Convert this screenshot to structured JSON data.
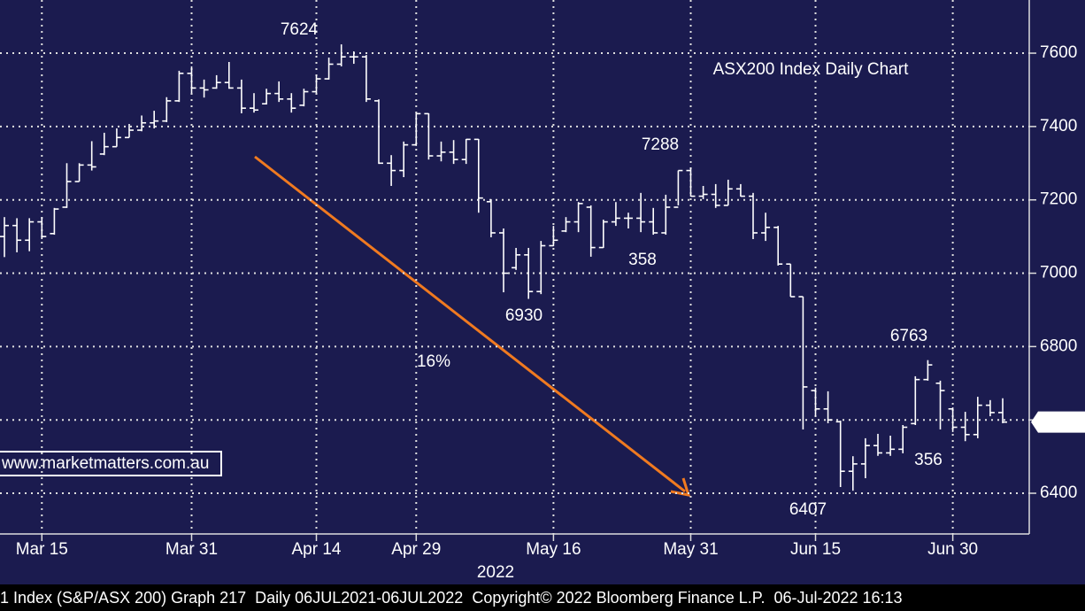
{
  "chart_data": {
    "type": "ohlc",
    "title": "ASX200 Index Daily Chart",
    "x": [
      "2022-03-10",
      "2022-03-11",
      "2022-03-14",
      "2022-03-15",
      "2022-03-16",
      "2022-03-17",
      "2022-03-18",
      "2022-03-21",
      "2022-03-22",
      "2022-03-23",
      "2022-03-24",
      "2022-03-25",
      "2022-03-28",
      "2022-03-29",
      "2022-03-30",
      "2022-03-31",
      "2022-04-01",
      "2022-04-04",
      "2022-04-05",
      "2022-04-06",
      "2022-04-07",
      "2022-04-08",
      "2022-04-11",
      "2022-04-12",
      "2022-04-13",
      "2022-04-14",
      "2022-04-19",
      "2022-04-20",
      "2022-04-21",
      "2022-04-22",
      "2022-04-26",
      "2022-04-27",
      "2022-04-28",
      "2022-04-29",
      "2022-05-02",
      "2022-05-03",
      "2022-05-04",
      "2022-05-05",
      "2022-05-06",
      "2022-05-09",
      "2022-05-10",
      "2022-05-11",
      "2022-05-12",
      "2022-05-13",
      "2022-05-16",
      "2022-05-17",
      "2022-05-18",
      "2022-05-19",
      "2022-05-20",
      "2022-05-23",
      "2022-05-24",
      "2022-05-25",
      "2022-05-26",
      "2022-05-27",
      "2022-05-30",
      "2022-05-31",
      "2022-06-01",
      "2022-06-02",
      "2022-06-03",
      "2022-06-06",
      "2022-06-07",
      "2022-06-08",
      "2022-06-09",
      "2022-06-10",
      "2022-06-14",
      "2022-06-15",
      "2022-06-16",
      "2022-06-17",
      "2022-06-20",
      "2022-06-21",
      "2022-06-22",
      "2022-06-23",
      "2022-06-24",
      "2022-06-27",
      "2022-06-28",
      "2022-06-29",
      "2022-06-30",
      "2022-07-01",
      "2022-07-04",
      "2022-07-05",
      "2022-07-06"
    ],
    "open": [
      7100,
      7130,
      7090,
      7140,
      7108,
      7180,
      7250,
      7295,
      7325,
      7345,
      7370,
      7390,
      7410,
      7415,
      7470,
      7545,
      7505,
      7505,
      7520,
      7505,
      7450,
      7462,
      7490,
      7475,
      7458,
      7495,
      7530,
      7570,
      7590,
      7590,
      7470,
      7300,
      7280,
      7350,
      7435,
      7320,
      7330,
      7310,
      7365,
      7195,
      7110,
      7015,
      7050,
      6950,
      7075,
      7115,
      7140,
      7180,
      7070,
      7140,
      7150,
      7150,
      7140,
      7110,
      7180,
      7280,
      7210,
      7215,
      7185,
      7230,
      7210,
      7110,
      7125,
      7025,
      6936,
      6680,
      6630,
      6595,
      6460,
      6480,
      6530,
      6510,
      6520,
      6590,
      6710,
      6700,
      6630,
      6580,
      6560,
      6640,
      6620
    ],
    "high": [
      7153,
      7150,
      7150,
      7153,
      7178,
      7300,
      7300,
      7360,
      7383,
      7395,
      7407,
      7430,
      7443,
      7480,
      7552,
      7564,
      7528,
      7540,
      7576,
      7528,
      7491,
      7503,
      7523,
      7491,
      7503,
      7540,
      7588,
      7624,
      7605,
      7595,
      7474,
      7322,
      7359,
      7436,
      7436,
      7359,
      7363,
      7366,
      7366,
      7202,
      7122,
      7069,
      7069,
      7088,
      7129,
      7153,
      7194,
      7185,
      7146,
      7194,
      7165,
      7219,
      7178,
      7214,
      7280,
      7288,
      7238,
      7243,
      7255,
      7243,
      7219,
      7165,
      7129,
      7025,
      6936,
      6688,
      6678,
      6598,
      6501,
      6550,
      6562,
      6557,
      6586,
      6719,
      6763,
      6707,
      6634,
      6622,
      6663,
      6654,
      6659
    ],
    "low": [
      7044,
      7057,
      7060,
      7093,
      7105,
      7178,
      7250,
      7280,
      7322,
      7345,
      7370,
      7387,
      7395,
      7412,
      7467,
      7491,
      7479,
      7503,
      7503,
      7436,
      7438,
      7460,
      7467,
      7438,
      7455,
      7491,
      7528,
      7564,
      7571,
      7467,
      7298,
      7238,
      7262,
      7347,
      7310,
      7305,
      7298,
      7298,
      7165,
      7098,
      6948,
      7009,
      6930,
      6943,
      7074,
      7112,
      7112,
      7045,
      7069,
      7129,
      7122,
      7112,
      7105,
      7105,
      7185,
      7209,
      7202,
      7178,
      7185,
      7209,
      7093,
      7088,
      7021,
      6936,
      6574,
      6610,
      6591,
      6417,
      6407,
      6441,
      6502,
      6502,
      6509,
      6586,
      6707,
      6574,
      6567,
      6542,
      6550,
      6610,
      6591
    ],
    "close": [
      7130,
      7090,
      7140,
      7100,
      7175,
      7250,
      7295,
      7290,
      7345,
      7370,
      7390,
      7410,
      7415,
      7470,
      7545,
      7505,
      7500,
      7520,
      7505,
      7450,
      7445,
      7490,
      7475,
      7450,
      7495,
      7530,
      7570,
      7590,
      7590,
      7475,
      7300,
      7280,
      7350,
      7435,
      7320,
      7330,
      7310,
      7365,
      7205,
      7110,
      7000,
      7050,
      6950,
      7075,
      7090,
      7140,
      7190,
      7070,
      7140,
      7150,
      7150,
      7140,
      7110,
      7180,
      7280,
      7210,
      7215,
      7185,
      7230,
      7210,
      7110,
      7125,
      7025,
      6936,
      6690,
      6630,
      6600,
      6460,
      6480,
      6530,
      6510,
      6520,
      6580,
      6710,
      6750,
      6680,
      6580,
      6560,
      6640,
      6620,
      6594
    ],
    "color": "#ffffff",
    "background": "#1b1b4f",
    "ylim": [
      6289,
      7745
    ],
    "yticks": [
      6400,
      6600,
      6800,
      7000,
      7200,
      7400,
      7600
    ],
    "xticks": [
      {
        "value": "2022-03-15",
        "label": "Mar 15"
      },
      {
        "value": "2022-03-31",
        "label": "Mar 31"
      },
      {
        "value": "2022-04-14",
        "label": "Apr 14"
      },
      {
        "value": "2022-04-29",
        "label": "Apr 29"
      },
      {
        "value": "2022-05-16",
        "label": "May 16"
      },
      {
        "value": "2022-05-31",
        "label": "May 31"
      },
      {
        "value": "2022-06-15",
        "label": "Jun 15"
      },
      {
        "value": "2022-06-30",
        "label": "Jun 30"
      }
    ],
    "x_axis_year": "2022",
    "grid": true,
    "last_price_label": "6594.",
    "annotations": [
      {
        "text": "7624",
        "color": "#ffffff"
      },
      {
        "text": "7288",
        "color": "#ffffff"
      },
      {
        "text": "6930",
        "color": "#ffffff"
      },
      {
        "text": "358",
        "color": "#f2e600"
      },
      {
        "text": "16%",
        "color": "#f07a20"
      },
      {
        "text": "6763",
        "color": "#ffffff"
      },
      {
        "text": "6407",
        "color": "#ffffff"
      },
      {
        "text": "356",
        "color": "#f2e600"
      }
    ],
    "title_color": "#90e890",
    "watermark": "www.marketmatters.com.au",
    "footer": "1 Index (S&P/ASX 200) Graph 217  Daily 06JUL2021-06JUL2022  Copyright© 2022 Bloomberg Finance L.P.  06-Jul-2022 16:13"
  }
}
